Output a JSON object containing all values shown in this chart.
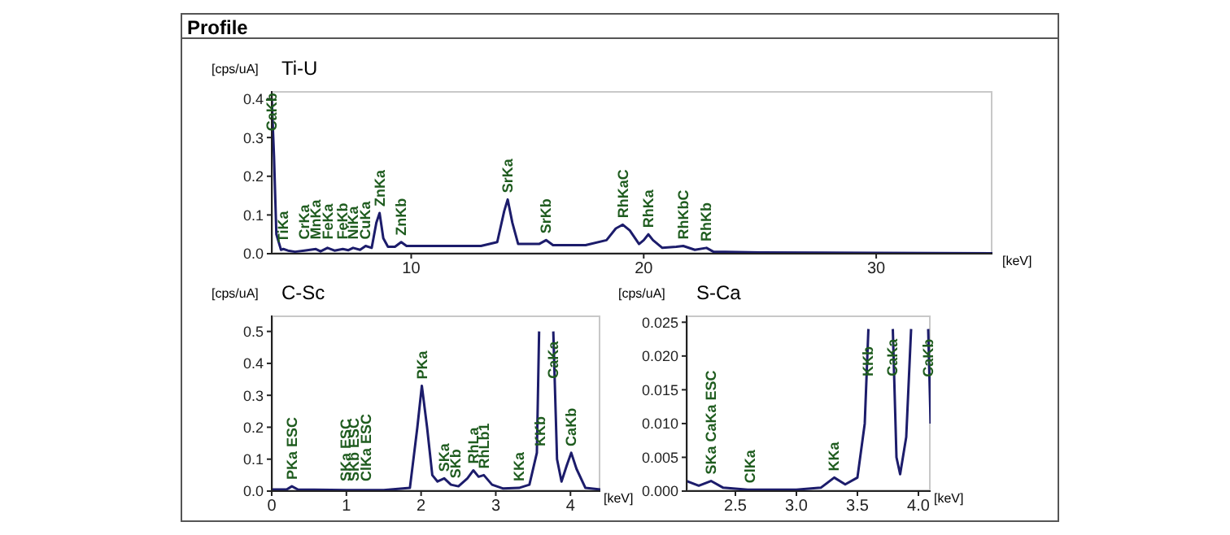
{
  "chart_data": [
    {
      "type": "line",
      "title": "Ti-U",
      "xlabel": "[keV]",
      "ylabel": "[cps/uA]",
      "xlim": [
        4,
        35
      ],
      "ylim": [
        0,
        0.42
      ],
      "xticks": [
        10,
        20,
        30
      ],
      "yticks": [
        {
          "value": 0,
          "label": "0.0"
        },
        0.1,
        0.2,
        0.3,
        0.4
      ],
      "marker": "none",
      "series": [
        {
          "color": "#1c1c6b",
          "x": [
            4.0,
            4.1,
            4.2,
            4.4,
            4.5,
            4.7,
            5.0,
            5.4,
            5.9,
            6.1,
            6.4,
            6.7,
            7.06,
            7.3,
            7.5,
            7.8,
            8.04,
            8.3,
            8.5,
            8.64,
            8.8,
            9.0,
            9.3,
            9.57,
            9.8,
            11,
            13,
            13.7,
            14.0,
            14.15,
            14.35,
            14.6,
            15.5,
            15.8,
            16.1,
            17.5,
            18.4,
            18.8,
            19.1,
            19.4,
            19.8,
            20.0,
            20.2,
            20.4,
            20.8,
            21.4,
            21.7,
            22.2,
            22.7,
            23.0,
            25,
            30,
            35
          ],
          "values": [
            0.4,
            0.25,
            0.05,
            0.01,
            0.012,
            0.008,
            0.005,
            0.008,
            0.012,
            0.006,
            0.015,
            0.008,
            0.012,
            0.009,
            0.015,
            0.01,
            0.02,
            0.015,
            0.08,
            0.105,
            0.04,
            0.018,
            0.018,
            0.03,
            0.02,
            0.02,
            0.02,
            0.03,
            0.11,
            0.14,
            0.08,
            0.025,
            0.025,
            0.035,
            0.022,
            0.022,
            0.035,
            0.065,
            0.075,
            0.06,
            0.025,
            0.035,
            0.05,
            0.035,
            0.015,
            0.018,
            0.02,
            0.01,
            0.015,
            0.005,
            0.003,
            0.002,
            0.001
          ]
        }
      ],
      "annotations": [
        "Profile",
        {
          "text": "CaKb",
          "x": 4.0,
          "y": 0.3
        },
        {
          "text": "TiKa",
          "x": 4.5,
          "y": 0.012
        },
        {
          "text": "CrKa",
          "x": 5.4,
          "y": 0.02
        },
        {
          "text": "MnKa",
          "x": 5.9,
          "y": 0.02
        },
        {
          "text": "FeKa",
          "x": 6.4,
          "y": 0.02
        },
        {
          "text": "FeKb",
          "x": 7.06,
          "y": 0.02
        },
        {
          "text": "NiKa",
          "x": 7.5,
          "y": 0.02
        },
        {
          "text": "CuKa",
          "x": 8.04,
          "y": 0.02
        },
        {
          "text": "ZnKa",
          "x": 8.64,
          "y": 0.105
        },
        {
          "text": "ZnKb",
          "x": 9.57,
          "y": 0.03
        },
        {
          "text": "SrKa",
          "x": 14.15,
          "y": 0.14
        },
        {
          "text": "SrKb",
          "x": 15.8,
          "y": 0.035
        },
        {
          "text": "RhKaC",
          "x": 19.1,
          "y": 0.075
        },
        {
          "text": "RhKa",
          "x": 20.2,
          "y": 0.05
        },
        {
          "text": "RhKbC",
          "x": 21.7,
          "y": 0.02
        },
        {
          "text": "RhKb",
          "x": 22.7,
          "y": 0.015
        }
      ]
    },
    {
      "type": "line",
      "title": "C-Sc",
      "xlabel": "[keV]",
      "ylabel": "[cps/uA]",
      "xlim": [
        0,
        4.4
      ],
      "ylim": [
        0,
        0.55
      ],
      "xticks": [
        0,
        1,
        2,
        3,
        4
      ],
      "yticks": [
        {
          "value": 0,
          "label": "0.0"
        },
        0.1,
        0.2,
        0.3,
        0.4,
        0.5
      ],
      "marker": "none",
      "series": [
        {
          "color": "#1c1c6b",
          "x": [
            0,
            0.2,
            0.27,
            0.35,
            1.0,
            1.5,
            1.85,
            1.95,
            2.01,
            2.08,
            2.15,
            2.22,
            2.31,
            2.4,
            2.5,
            2.62,
            2.7,
            2.77,
            2.84,
            2.95,
            3.1,
            3.31,
            3.45,
            3.55,
            3.58,
            3.6,
            3.75,
            3.77,
            3.82,
            3.88,
            3.95,
            4.01,
            4.08,
            4.2,
            4.4
          ],
          "values": [
            0.005,
            0.005,
            0.015,
            0.005,
            0.003,
            0.003,
            0.01,
            0.2,
            0.33,
            0.2,
            0.05,
            0.03,
            0.04,
            0.02,
            0.015,
            0.04,
            0.065,
            0.045,
            0.05,
            0.02,
            0.008,
            0.01,
            0.02,
            0.12,
            0.5,
            null,
            null,
            0.5,
            0.1,
            0.03,
            0.08,
            0.12,
            0.07,
            0.01,
            0.005
          ]
        }
      ],
      "annotations": [
        {
          "text": "PKa ESC",
          "x": 0.27,
          "y": 0.015
        },
        {
          "text": "SKa ESC",
          "x": 0.99,
          "y": 0.01
        },
        {
          "text": "SKb ESC",
          "x": 1.1,
          "y": 0.01
        },
        {
          "text": "ClKa ESC",
          "x": 1.26,
          "y": 0.01
        },
        {
          "text": "PKa",
          "x": 2.01,
          "y": 0.33
        },
        {
          "text": "SKa",
          "x": 2.31,
          "y": 0.04
        },
        {
          "text": "SKb",
          "x": 2.46,
          "y": 0.02
        },
        {
          "text": "RhLa",
          "x": 2.7,
          "y": 0.065
        },
        {
          "text": "RhLb1",
          "x": 2.84,
          "y": 0.05
        },
        {
          "text": "KKa",
          "x": 3.31,
          "y": 0.01
        },
        {
          "text": "KKb",
          "x": 3.59,
          "y": 0.12
        },
        {
          "text": "CaKa",
          "x": 3.77,
          "y": 0.5
        },
        {
          "text": "CaKb",
          "x": 4.01,
          "y": 0.12
        }
      ]
    },
    {
      "type": "line",
      "title": "S-Ca",
      "xlabel": "[keV]",
      "ylabel": "[cps/uA]",
      "xlim": [
        2.1,
        4.1
      ],
      "ylim": [
        0,
        0.026
      ],
      "xticks": [
        {
          "value": 2.5,
          "label": "2.5"
        },
        {
          "value": 3,
          "label": "3.0"
        },
        {
          "value": 3.5,
          "label": "3.5"
        },
        {
          "value": 4,
          "label": "4.0"
        }
      ],
      "yticks": [
        {
          "value": 0,
          "label": "0.000"
        },
        {
          "value": 0.005,
          "label": "0.005"
        },
        {
          "value": 0.01,
          "label": "0.010"
        },
        {
          "value": 0.015,
          "label": "0.015"
        },
        {
          "value": 0.02,
          "label": "0.020"
        },
        {
          "value": 0.025,
          "label": "0.025"
        }
      ],
      "marker": "none",
      "series": [
        {
          "color": "#1c1c6b",
          "x": [
            2.1,
            2.2,
            2.3,
            2.4,
            2.6,
            3.0,
            3.2,
            3.31,
            3.4,
            3.5,
            3.56,
            3.59,
            3.6,
            3.78,
            3.79,
            3.82,
            3.85,
            3.9,
            3.94,
            3.95,
            4.07,
            4.08,
            4.1
          ],
          "values": [
            0.0015,
            0.0008,
            0.0015,
            0.0005,
            0.0002,
            0.0002,
            0.0005,
            0.002,
            0.001,
            0.002,
            0.01,
            0.024,
            null,
            null,
            0.024,
            0.005,
            0.0025,
            0.008,
            0.024,
            null,
            null,
            0.024,
            0.01
          ]
        }
      ],
      "annotations": [
        {
          "text": "SKa CaKa ESC",
          "x": 2.3,
          "y": 0.0015
        },
        {
          "text": "ClKa",
          "x": 2.62,
          "y": 0.0002
        },
        {
          "text": "KKa",
          "x": 3.31,
          "y": 0.002
        },
        {
          "text": "KKb",
          "x": 3.59,
          "y": 0.016
        },
        {
          "text": "CaKa",
          "x": 3.79,
          "y": 0.024
        },
        {
          "text": "CaKb",
          "x": 4.08,
          "y": 0.024
        }
      ]
    }
  ]
}
